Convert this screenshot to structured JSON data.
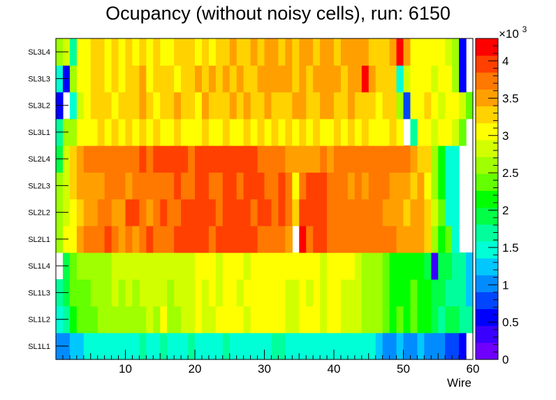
{
  "chart_data": {
    "type": "heatmap",
    "title": "Ocupancy (without noisy cells), run: 6150",
    "xlabel": "Wire",
    "ylabel": "",
    "xlim": [
      0,
      60
    ],
    "x_ticks": [
      10,
      20,
      30,
      40,
      50,
      60
    ],
    "y_categories": [
      "SL1L1",
      "SL1L2",
      "SL1L3",
      "SL1L4",
      "SL2L1",
      "SL2L2",
      "SL2L3",
      "SL2L4",
      "SL3L1",
      "SL3L2",
      "SL3L3",
      "SL3L4"
    ],
    "z_range": [
      0,
      4300
    ],
    "colorbar_ticks": [
      "0",
      "0.5",
      "1",
      "1.5",
      "2",
      "2.5",
      "3",
      "3.5",
      "4"
    ],
    "colorbar_exponent": "×10",
    "colorbar_exponent_power": "3",
    "palette": [
      "#6f00ff",
      "#3a00ff",
      "#0000ff",
      "#0046ff",
      "#008cff",
      "#00c8ff",
      "#00ffd6",
      "#00ff9c",
      "#00ff46",
      "#00ff00",
      "#64ff00",
      "#a0ff00",
      "#d2ff00",
      "#ffff00",
      "#ffd200",
      "#ffa000",
      "#ff7800",
      "#ff4000",
      "#ff0000"
    ],
    "rows": {
      "SL1L1": [
        1000,
        1000,
        1300,
        1300,
        1500,
        1500,
        1550,
        1550,
        1500,
        1550,
        1550,
        1500,
        1600,
        1450,
        1400,
        1600,
        1550,
        1500,
        1550,
        1600,
        1550,
        1500,
        1550,
        1550,
        1600,
        1550,
        1500,
        1550,
        1500,
        1550,
        1500,
        1600,
        1600,
        1500,
        1550,
        1500,
        1500,
        1550,
        1550,
        1500,
        1550,
        1500,
        1550,
        1550,
        1500,
        1450,
        1350,
        1100,
        1100,
        1150,
        1100,
        1100,
        1150,
        1000,
        1000,
        950,
        900,
        750,
        550,
        0
      ],
      "SL1L2": [
        1400,
        1700,
        2100,
        2300,
        2400,
        2300,
        2600,
        2600,
        2600,
        2600,
        2600,
        2700,
        2600,
        2800,
        2700,
        3000,
        2600,
        2700,
        2800,
        2800,
        3000,
        2900,
        2900,
        3000,
        3000,
        3100,
        3000,
        2800,
        3000,
        3100,
        3000,
        3100,
        3000,
        2900,
        2900,
        3000,
        3000,
        3000,
        2800,
        3100,
        3000,
        2900,
        2800,
        2900,
        2700,
        2600,
        2500,
        2300,
        2200,
        2300,
        2200,
        2300,
        2200,
        2100,
        2000,
        1800,
        1900,
        1900,
        1700,
        1600
      ],
      "SL1L3": [
        1600,
        2000,
        2300,
        2400,
        2400,
        2500,
        2600,
        2600,
        2800,
        2700,
        2800,
        2700,
        2900,
        2800,
        2900,
        2800,
        2700,
        2800,
        2900,
        2900,
        3000,
        2900,
        3000,
        2800,
        3000,
        3000,
        2900,
        3000,
        3000,
        3000,
        3000,
        3100,
        3000,
        2900,
        2800,
        3000,
        2900,
        3000,
        2800,
        3100,
        3000,
        2800,
        2900,
        2800,
        2700,
        2600,
        2500,
        2300,
        2200,
        2200,
        2200,
        2300,
        2200,
        2100,
        2000,
        1900,
        1800,
        1700,
        1600,
        1300
      ],
      "SL1L4": [
        0,
        2000,
        2300,
        2600,
        2600,
        2600,
        2600,
        2700,
        2800,
        2800,
        2800,
        2900,
        2800,
        2900,
        2800,
        2900,
        2800,
        2800,
        2900,
        2900,
        3000,
        3100,
        3000,
        2900,
        3000,
        3100,
        3000,
        2900,
        3000,
        3100,
        3000,
        3000,
        3100,
        3000,
        3000,
        3100,
        3100,
        3000,
        2800,
        3000,
        3000,
        3000,
        3000,
        2900,
        2700,
        2700,
        2600,
        2400,
        2200,
        2200,
        2200,
        2100,
        2200,
        2000,
        300,
        2000,
        1900,
        1700,
        1600,
        1200
      ],
      "SL2L1": [
        2600,
        3000,
        3100,
        3400,
        3700,
        3700,
        3700,
        3900,
        3700,
        3600,
        3800,
        3600,
        3800,
        4000,
        3700,
        3700,
        3800,
        4000,
        4000,
        3900,
        4000,
        4000,
        3700,
        4000,
        3900,
        4000,
        4000,
        4000,
        3900,
        3700,
        3700,
        3800,
        3800,
        3600,
        0,
        4100,
        3800,
        4000,
        4000,
        3700,
        3700,
        3800,
        3800,
        3700,
        3800,
        3800,
        3700,
        3700,
        3700,
        3500,
        3400,
        3500,
        3500,
        3200,
        2500,
        2200,
        2300,
        1500,
        0,
        0
      ],
      "SL2L2": [
        2500,
        2800,
        3000,
        3200,
        3500,
        3600,
        3700,
        3700,
        3500,
        3600,
        4000,
        4000,
        3800,
        3600,
        3800,
        3900,
        3800,
        3800,
        3900,
        4000,
        4000,
        4000,
        4000,
        3800,
        3900,
        4000,
        4000,
        4000,
        3800,
        3900,
        4000,
        3700,
        3900,
        3700,
        3200,
        4000,
        4000,
        4000,
        3900,
        3700,
        3800,
        3700,
        3700,
        3700,
        3700,
        3700,
        3700,
        3600,
        3500,
        3500,
        3200,
        3500,
        3400,
        3300,
        2800,
        2300,
        1500,
        1500,
        0,
        0
      ],
      "SL2L3": [
        2500,
        2900,
        3200,
        3400,
        3600,
        3600,
        3600,
        3700,
        3700,
        3800,
        3600,
        3800,
        3700,
        3800,
        3700,
        3800,
        3800,
        3900,
        3800,
        3700,
        4000,
        3900,
        3800,
        3800,
        3900,
        4000,
        3800,
        4000,
        3900,
        4000,
        3700,
        3800,
        3900,
        3700,
        3000,
        3800,
        4000,
        4000,
        4000,
        3700,
        3800,
        3700,
        3600,
        3800,
        3600,
        3700,
        3800,
        3700,
        3600,
        3500,
        3600,
        3200,
        3400,
        3100,
        2700,
        2100,
        1500,
        1500,
        0,
        0
      ],
      "SL2L4": [
        2000,
        2800,
        3200,
        3600,
        3700,
        3700,
        3700,
        3800,
        3700,
        3700,
        3800,
        3700,
        3900,
        3800,
        3900,
        3900,
        3900,
        3900,
        3900,
        3800,
        3900,
        4000,
        4000,
        3900,
        4000,
        4000,
        3900,
        4000,
        3900,
        3800,
        3700,
        3700,
        3700,
        3500,
        3500,
        3500,
        3500,
        3500,
        3800,
        3600,
        3700,
        3700,
        3700,
        3700,
        3700,
        3700,
        3700,
        3700,
        3700,
        3700,
        3700,
        3600,
        3300,
        3200,
        2500,
        2100,
        1500,
        1500,
        0,
        0
      ],
      "SL3L1": [
        1700,
        2600,
        2600,
        3100,
        3100,
        3000,
        3200,
        3100,
        3200,
        3100,
        3300,
        3000,
        3200,
        3100,
        3200,
        3100,
        3000,
        3300,
        3100,
        3100,
        3100,
        3200,
        3000,
        3100,
        3200,
        3100,
        3000,
        3300,
        3100,
        3200,
        3000,
        3300,
        3100,
        3200,
        3100,
        3300,
        3100,
        3200,
        3000,
        3100,
        3200,
        3100,
        3300,
        3100,
        3200,
        3100,
        3000,
        3100,
        3200,
        3000,
        0,
        1600,
        3100,
        3000,
        2900,
        3000,
        3100,
        2900,
        2300,
        0
      ],
      "SL3L2": [
        500,
        0,
        1500,
        2800,
        3100,
        3200,
        3300,
        3200,
        3100,
        3200,
        3300,
        3200,
        3400,
        3200,
        3100,
        3300,
        3300,
        3400,
        3200,
        3300,
        3100,
        3400,
        3300,
        3200,
        3300,
        3400,
        3200,
        3400,
        3300,
        3200,
        3400,
        3300,
        3300,
        3200,
        3400,
        3500,
        3300,
        3200,
        3400,
        3400,
        3300,
        3200,
        3400,
        3300,
        3200,
        3300,
        3100,
        3300,
        3200,
        2500,
        900,
        3100,
        3000,
        3200,
        3000,
        2900,
        3000,
        3100,
        2900,
        2400
      ],
      "SL3L3": [
        1400,
        600,
        2500,
        3000,
        3100,
        3200,
        3300,
        3100,
        3300,
        3100,
        3200,
        3300,
        3400,
        3100,
        3300,
        3200,
        3300,
        3100,
        3300,
        3200,
        3400,
        3300,
        3400,
        3200,
        3400,
        3300,
        3400,
        3300,
        3200,
        3600,
        3600,
        3400,
        3500,
        3400,
        3300,
        3500,
        3300,
        3400,
        3500,
        3400,
        3500,
        3300,
        3400,
        3500,
        4200,
        3400,
        3200,
        3300,
        3300,
        1500,
        2900,
        3000,
        3100,
        3000,
        2900,
        3000,
        3100,
        2700,
        600,
        0
      ],
      "SL3L4": [
        2500,
        2800,
        1700,
        3000,
        3100,
        3200,
        3200,
        3100,
        3200,
        3100,
        3200,
        3100,
        3200,
        3100,
        3200,
        3100,
        3100,
        3200,
        3300,
        3200,
        3100,
        3300,
        3100,
        3200,
        3300,
        3400,
        3300,
        3200,
        3400,
        3300,
        3500,
        3400,
        3300,
        3500,
        3300,
        3400,
        3500,
        3300,
        3400,
        3500,
        3300,
        3400,
        3500,
        3600,
        3400,
        3300,
        3300,
        3200,
        3600,
        4100,
        3500,
        3100,
        3000,
        3100,
        3000,
        3100,
        2900,
        2700,
        600,
        0
      ]
    }
  }
}
